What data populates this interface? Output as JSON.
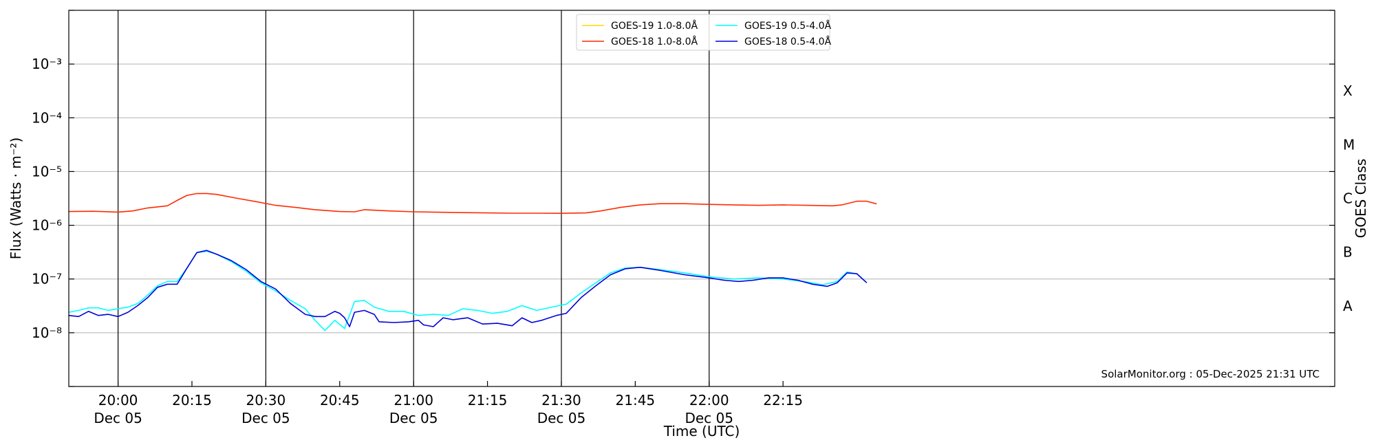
{
  "chart_data": {
    "type": "line",
    "xlabel": "Time (UTC)",
    "ylabel": "Flux (Watts · m⁻²)",
    "right_axis_label": "GOES Class",
    "yscale": "log",
    "ylim": [
      1e-09,
      0.01
    ],
    "xlim_minutes_from_2000": [
      -10,
      247
    ],
    "y_ticks": [
      {
        "exp": -8,
        "text": "10⁻⁸"
      },
      {
        "exp": -7,
        "text": "10⁻⁷"
      },
      {
        "exp": -6,
        "text": "10⁻⁶"
      },
      {
        "exp": -5,
        "text": "10⁻⁵"
      },
      {
        "exp": -4,
        "text": "10⁻⁴"
      },
      {
        "exp": -3,
        "text": "10⁻³"
      }
    ],
    "x_ticks": [
      {
        "t": "20:00",
        "l1": "20:00",
        "l2": "Dec 05",
        "major": true
      },
      {
        "t": "20:15",
        "l1": "20:15",
        "l2": "",
        "major": false
      },
      {
        "t": "20:30",
        "l1": "20:30",
        "l2": "Dec 05",
        "major": true
      },
      {
        "t": "20:45",
        "l1": "20:45",
        "l2": "",
        "major": false
      },
      {
        "t": "21:00",
        "l1": "21:00",
        "l2": "Dec 05",
        "major": true
      },
      {
        "t": "21:15",
        "l1": "21:15",
        "l2": "",
        "major": false
      },
      {
        "t": "21:30",
        "l1": "21:30",
        "l2": "Dec 05",
        "major": true
      },
      {
        "t": "21:45",
        "l1": "21:45",
        "l2": "",
        "major": false
      },
      {
        "t": "22:00",
        "l1": "22:00",
        "l2": "Dec 05",
        "major": true
      },
      {
        "t": "22:15",
        "l1": "22:15",
        "l2": "",
        "major": false
      }
    ],
    "goes_classes": [
      {
        "label": "A",
        "center": 3.16e-08
      },
      {
        "label": "B",
        "center": 3.16e-07
      },
      {
        "label": "C",
        "center": 3.16e-06
      },
      {
        "label": "M",
        "center": 3.16e-05
      },
      {
        "label": "X",
        "center": 0.000316
      }
    ],
    "legend_position": "top-center",
    "grid": "horizontal at decades",
    "series": [
      {
        "name": "GOES-19 1.0-8.0Å",
        "color": "#ffd700",
        "points": []
      },
      {
        "name": "GOES-18 1.0-8.0Å",
        "color": "#ff2a00",
        "points": [
          [
            "19:50",
            1.8e-06
          ],
          [
            "19:55",
            1.82e-06
          ],
          [
            "20:00",
            1.76e-06
          ],
          [
            "20:03",
            1.85e-06
          ],
          [
            "20:06",
            2.1e-06
          ],
          [
            "20:10",
            2.3e-06
          ],
          [
            "20:12",
            2.9e-06
          ],
          [
            "20:14",
            3.6e-06
          ],
          [
            "20:16",
            3.9e-06
          ],
          [
            "20:18",
            3.9e-06
          ],
          [
            "20:20",
            3.75e-06
          ],
          [
            "20:24",
            3.2e-06
          ],
          [
            "20:28",
            2.75e-06
          ],
          [
            "20:32",
            2.35e-06
          ],
          [
            "20:36",
            2.15e-06
          ],
          [
            "20:40",
            1.95e-06
          ],
          [
            "20:45",
            1.8e-06
          ],
          [
            "20:48",
            1.78e-06
          ],
          [
            "20:50",
            1.95e-06
          ],
          [
            "20:55",
            1.85e-06
          ],
          [
            "21:00",
            1.78e-06
          ],
          [
            "21:05",
            1.75e-06
          ],
          [
            "21:10",
            1.72e-06
          ],
          [
            "21:15",
            1.7e-06
          ],
          [
            "21:20",
            1.68e-06
          ],
          [
            "21:25",
            1.68e-06
          ],
          [
            "21:30",
            1.67e-06
          ],
          [
            "21:35",
            1.7e-06
          ],
          [
            "21:38",
            1.85e-06
          ],
          [
            "21:42",
            2.15e-06
          ],
          [
            "21:46",
            2.4e-06
          ],
          [
            "21:50",
            2.52e-06
          ],
          [
            "21:55",
            2.52e-06
          ],
          [
            "22:00",
            2.45e-06
          ],
          [
            "22:05",
            2.4e-06
          ],
          [
            "22:10",
            2.35e-06
          ],
          [
            "22:15",
            2.4e-06
          ],
          [
            "22:20",
            2.35e-06
          ],
          [
            "22:25",
            2.3e-06
          ],
          [
            "22:27",
            2.4e-06
          ],
          [
            "22:30",
            2.8e-06
          ],
          [
            "22:32",
            2.8e-06
          ],
          [
            "22:34",
            2.5e-06
          ]
        ]
      },
      {
        "name": "GOES-19 0.5-4.0Å",
        "color": "#00ffff",
        "points": [
          [
            "19:50",
            2.4e-08
          ],
          [
            "19:52",
            2.6e-08
          ],
          [
            "19:54",
            2.9e-08
          ],
          [
            "19:56",
            2.9e-08
          ],
          [
            "19:58",
            2.6e-08
          ],
          [
            "20:00",
            2.8e-08
          ],
          [
            "20:02",
            3e-08
          ],
          [
            "20:04",
            3.5e-08
          ],
          [
            "20:06",
            5e-08
          ],
          [
            "20:08",
            7.5e-08
          ],
          [
            "20:10",
            9e-08
          ],
          [
            "20:12",
            9e-08
          ],
          [
            "20:14",
            1.6e-07
          ],
          [
            "20:16",
            3.1e-07
          ],
          [
            "20:18",
            3.3e-07
          ],
          [
            "20:20",
            2.9e-07
          ],
          [
            "20:23",
            2.1e-07
          ],
          [
            "20:26",
            1.4e-07
          ],
          [
            "20:29",
            8.5e-08
          ],
          [
            "20:32",
            6e-08
          ],
          [
            "20:35",
            4e-08
          ],
          [
            "20:38",
            2.8e-08
          ],
          [
            "20:40",
            1.7e-08
          ],
          [
            "20:42",
            1.1e-08
          ],
          [
            "20:44",
            1.7e-08
          ],
          [
            "20:46",
            1.2e-08
          ],
          [
            "20:48",
            3.8e-08
          ],
          [
            "20:50",
            4e-08
          ],
          [
            "20:52",
            3e-08
          ],
          [
            "20:55",
            2.5e-08
          ],
          [
            "20:58",
            2.5e-08
          ],
          [
            "21:01",
            2.1e-08
          ],
          [
            "21:04",
            2.2e-08
          ],
          [
            "21:07",
            2.1e-08
          ],
          [
            "21:10",
            2.8e-08
          ],
          [
            "21:13",
            2.6e-08
          ],
          [
            "21:16",
            2.3e-08
          ],
          [
            "21:19",
            2.5e-08
          ],
          [
            "21:22",
            3.2e-08
          ],
          [
            "21:25",
            2.6e-08
          ],
          [
            "21:28",
            3e-08
          ],
          [
            "21:31",
            3.4e-08
          ],
          [
            "21:34",
            5.5e-08
          ],
          [
            "21:37",
            8.5e-08
          ],
          [
            "21:40",
            1.3e-07
          ],
          [
            "21:43",
            1.6e-07
          ],
          [
            "21:46",
            1.65e-07
          ],
          [
            "21:50",
            1.5e-07
          ],
          [
            "21:55",
            1.3e-07
          ],
          [
            "22:00",
            1.1e-07
          ],
          [
            "22:05",
            1e-07
          ],
          [
            "22:10",
            1.05e-07
          ],
          [
            "22:15",
            1e-07
          ],
          [
            "22:20",
            8.8e-08
          ],
          [
            "22:23",
            7.8e-08
          ],
          [
            "22:26",
            9e-08
          ],
          [
            "22:28",
            1.35e-07
          ],
          [
            "22:30",
            1.25e-07
          ],
          [
            "22:32",
            8.5e-08
          ]
        ]
      },
      {
        "name": "GOES-18 0.5-4.0Å",
        "color": "#0000dd",
        "points": [
          [
            "19:50",
            2.1e-08
          ],
          [
            "19:52",
            2e-08
          ],
          [
            "19:54",
            2.5e-08
          ],
          [
            "19:56",
            2.1e-08
          ],
          [
            "19:58",
            2.2e-08
          ],
          [
            "20:00",
            2e-08
          ],
          [
            "20:02",
            2.4e-08
          ],
          [
            "20:04",
            3.2e-08
          ],
          [
            "20:06",
            4.5e-08
          ],
          [
            "20:08",
            7e-08
          ],
          [
            "20:10",
            8e-08
          ],
          [
            "20:12",
            8e-08
          ],
          [
            "20:14",
            1.6e-07
          ],
          [
            "20:16",
            3.1e-07
          ],
          [
            "20:18",
            3.4e-07
          ],
          [
            "20:20",
            2.9e-07
          ],
          [
            "20:23",
            2.2e-07
          ],
          [
            "20:26",
            1.5e-07
          ],
          [
            "20:29",
            9e-08
          ],
          [
            "20:32",
            6.5e-08
          ],
          [
            "20:35",
            3.5e-08
          ],
          [
            "20:38",
            2.2e-08
          ],
          [
            "20:40",
            2e-08
          ],
          [
            "20:42",
            2e-08
          ],
          [
            "20:44",
            2.5e-08
          ],
          [
            "20:45",
            2.3e-08
          ],
          [
            "20:46",
            1.9e-08
          ],
          [
            "20:47",
            1.3e-08
          ],
          [
            "20:48",
            2.4e-08
          ],
          [
            "20:50",
            2.6e-08
          ],
          [
            "20:52",
            2.2e-08
          ],
          [
            "20:53",
            1.6e-08
          ],
          [
            "20:56",
            1.55e-08
          ],
          [
            "20:59",
            1.6e-08
          ],
          [
            "21:01",
            1.7e-08
          ],
          [
            "21:02",
            1.4e-08
          ],
          [
            "21:04",
            1.3e-08
          ],
          [
            "21:06",
            1.9e-08
          ],
          [
            "21:08",
            1.75e-08
          ],
          [
            "21:11",
            1.9e-08
          ],
          [
            "21:14",
            1.45e-08
          ],
          [
            "21:17",
            1.5e-08
          ],
          [
            "21:20",
            1.35e-08
          ],
          [
            "21:22",
            1.9e-08
          ],
          [
            "21:24",
            1.55e-08
          ],
          [
            "21:26",
            1.7e-08
          ],
          [
            "21:29",
            2.1e-08
          ],
          [
            "21:31",
            2.3e-08
          ],
          [
            "21:34",
            4.5e-08
          ],
          [
            "21:37",
            7.5e-08
          ],
          [
            "21:40",
            1.2e-07
          ],
          [
            "21:43",
            1.55e-07
          ],
          [
            "21:46",
            1.65e-07
          ],
          [
            "21:50",
            1.45e-07
          ],
          [
            "21:55",
            1.2e-07
          ],
          [
            "22:00",
            1.05e-07
          ],
          [
            "22:03",
            9.5e-08
          ],
          [
            "22:06",
            9e-08
          ],
          [
            "22:09",
            9.5e-08
          ],
          [
            "22:12",
            1.05e-07
          ],
          [
            "22:15",
            1.05e-07
          ],
          [
            "22:18",
            9.5e-08
          ],
          [
            "22:21",
            8e-08
          ],
          [
            "22:24",
            7.3e-08
          ],
          [
            "22:26",
            8.5e-08
          ],
          [
            "22:28",
            1.3e-07
          ],
          [
            "22:30",
            1.25e-07
          ],
          [
            "22:32",
            8.5e-08
          ]
        ]
      }
    ],
    "credit": "SolarMonitor.org : 05-Dec-2025 21:31 UTC"
  }
}
